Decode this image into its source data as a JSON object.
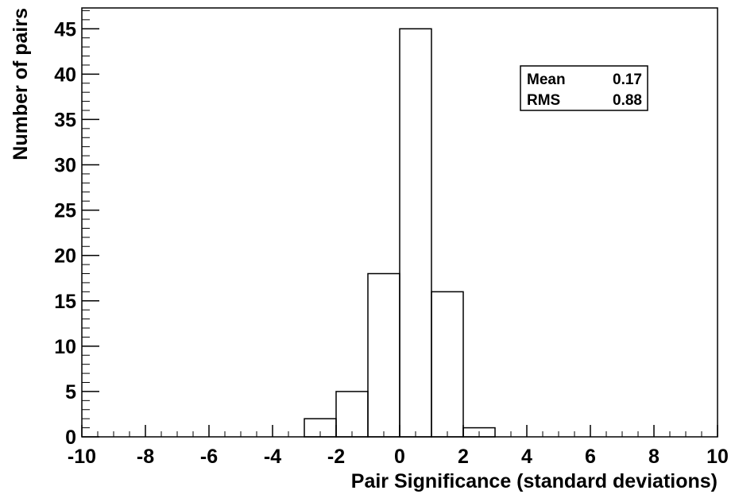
{
  "chart_data": {
    "type": "histogram",
    "xlabel": "Pair Significance (standard deviations)",
    "ylabel": "Number of pairs",
    "xlim": [
      -10,
      10
    ],
    "ylim": [
      0,
      47.3
    ],
    "bin_width": 1,
    "bins": [
      {
        "low": -3,
        "high": -2,
        "count": 2
      },
      {
        "low": -2,
        "high": -1,
        "count": 5
      },
      {
        "low": -1,
        "high": 0,
        "count": 18
      },
      {
        "low": 0,
        "high": 1,
        "count": 45
      },
      {
        "low": 1,
        "high": 2,
        "count": 16
      },
      {
        "low": 2,
        "high": 3,
        "count": 1
      }
    ],
    "x_ticks": [
      "-10",
      "-8",
      "-6",
      "-4",
      "-2",
      "0",
      "2",
      "4",
      "6",
      "8",
      "10"
    ],
    "y_ticks": [
      "0",
      "5",
      "10",
      "15",
      "20",
      "25",
      "30",
      "35",
      "40",
      "45"
    ],
    "x_major_step": 2,
    "x_minor_step": 0.5,
    "y_major_step": 5,
    "y_minor_step": 1,
    "grid": false,
    "stats_box": {
      "placement": "top-right",
      "rows": [
        {
          "label": "Mean",
          "value": "0.17"
        },
        {
          "label": "RMS",
          "value": "0.88"
        }
      ]
    }
  }
}
